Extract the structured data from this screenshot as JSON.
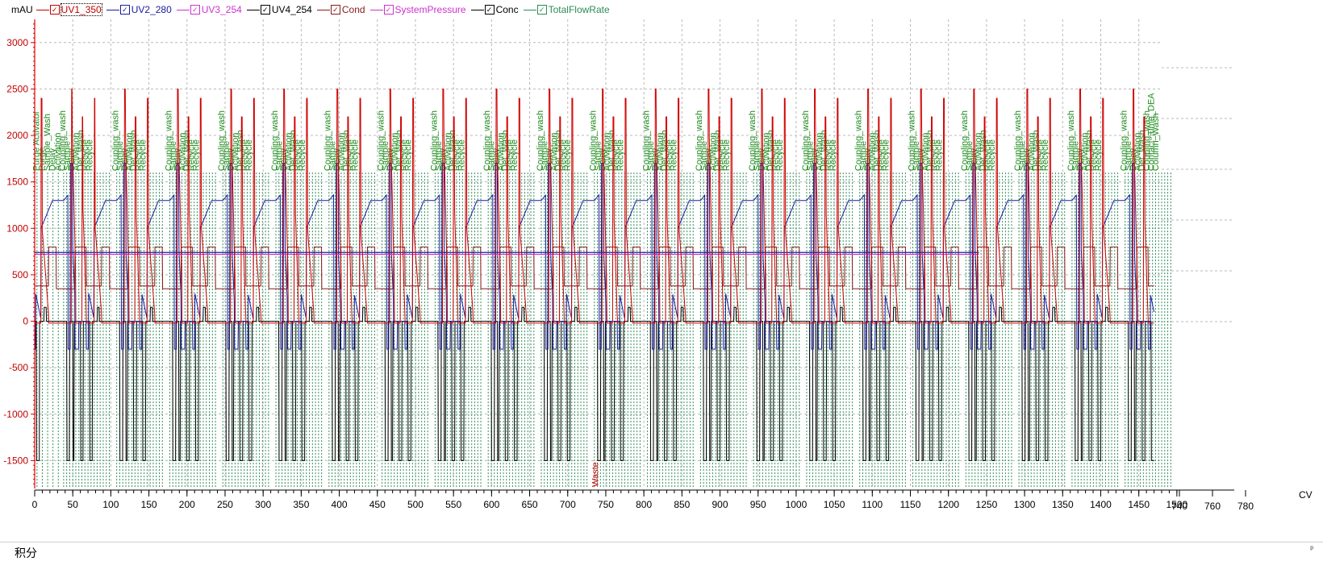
{
  "legend": {
    "unit": "mAU",
    "items": [
      {
        "label": "UV1_350",
        "color": "#c00000",
        "selected": true
      },
      {
        "label": "UV2_280",
        "color": "#1a1aa0",
        "selected": false
      },
      {
        "label": "UV3_254",
        "color": "#cc33cc",
        "selected": false
      },
      {
        "label": "UV4_254",
        "color": "#000000",
        "selected": false
      },
      {
        "label": "Cond",
        "color": "#8b1a1a",
        "selected": false
      },
      {
        "label": "SystemPressure",
        "color": "#cc33cc",
        "selected": false
      },
      {
        "label": "Conc",
        "color": "#000000",
        "selected": false
      },
      {
        "label": "TotalFlowRate",
        "color": "#2e8b57",
        "selected": false
      }
    ]
  },
  "chart_data": {
    "type": "line",
    "xlabel": "CV",
    "ylabel": "mAU",
    "x_range": [
      0,
      1480
    ],
    "y_range": [
      -1800,
      3250
    ],
    "x_ticks": [
      0,
      50,
      100,
      150,
      200,
      250,
      300,
      350,
      400,
      450,
      500,
      550,
      600,
      650,
      700,
      750,
      800,
      850,
      900,
      950,
      1000,
      1050,
      1100,
      1150,
      1200,
      1250,
      1300,
      1350,
      1400,
      1450,
      1500
    ],
    "x_ticks_extra": [
      740,
      760,
      780
    ],
    "y_ticks": [
      -1500,
      -1000,
      -500,
      0,
      500,
      1000,
      1500,
      2000,
      2500,
      3000
    ],
    "grid": true,
    "cycle": {
      "start": 38,
      "period": 69.7,
      "count": 21
    },
    "series_levels": {
      "UV1_350_peak": 2500,
      "UV2_280_plateau": 1300,
      "Cond_high": 800,
      "Cond_low": 350,
      "SystemPressure": 720,
      "Conc_low": -1500,
      "UV4_254_base": -300
    },
    "fraction_label": "Waste",
    "fraction_label_x": 740,
    "first_marks": [
      "Purge Activator",
      "Purge",
      "Sample_Wash",
      "Delay",
      "Activation"
    ],
    "cycle_marks": [
      "Coupling_wash",
      "Sample",
      "Delay",
      "Activation",
      "Det_Wash",
      "Recycle",
      "Recycle"
    ],
    "last_marks": [
      "Coupling_wash",
      "Sample",
      "Delay",
      "Activation",
      "Det_Wash",
      "Coupling_wash",
      "Contact_Time_DEA",
      "Column_Wash"
    ]
  },
  "bottom_panel": {
    "title": "积分",
    "pin": "ᵖ"
  }
}
